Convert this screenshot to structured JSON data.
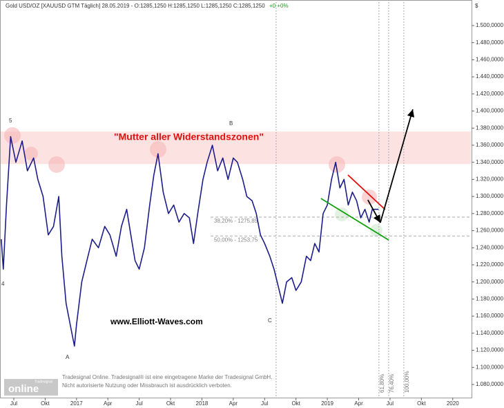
{
  "chart_data": {
    "type": "line",
    "title": "Gold USD/OZ [XAUUSD GTM  Täglich] 28.05.2019 - O:1285,1250 H:1285,1250 L:1285,1250 C:1285,1250",
    "change": "+0 +0%",
    "y_unit": "$",
    "color": "#1c1c8a",
    "x": [
      4.8,
      5.0,
      5.3,
      5.7,
      6.2,
      6.8,
      7.3,
      7.9,
      8.3,
      8.8,
      9.3,
      9.8,
      10.3,
      10.6,
      11.0,
      11.4,
      11.8,
      12.0,
      12.5,
      13.0,
      13.5,
      14.1,
      14.7,
      15.2,
      15.8,
      16.3,
      16.8,
      17.2,
      17.6,
      18.0,
      18.5,
      19.0,
      19.4,
      19.8,
      20.3,
      20.8,
      21.3,
      21.8,
      22.3,
      22.8,
      23.2,
      23.6,
      24.1,
      24.5,
      25.0,
      25.5,
      26.0,
      26.5,
      27.0,
      27.4,
      27.9,
      28.3,
      28.8,
      29.2,
      29.6,
      30.0,
      30.5,
      30.9,
      31.3,
      31.7,
      32.1,
      32.6,
      33.0,
      33.5,
      34.0,
      34.4,
      34.8,
      35.2,
      35.6,
      36.0,
      36.4,
      36.8,
      37.2,
      37.6,
      38.0,
      38.4,
      38.8,
      39.2,
      39.6,
      40.0,
      40.3,
      40.9
    ],
    "values": [
      1250,
      1215,
      1290,
      1370,
      1340,
      1365,
      1330,
      1345,
      1320,
      1300,
      1255,
      1265,
      1300,
      1230,
      1175,
      1150,
      1125,
      1150,
      1200,
      1225,
      1250,
      1240,
      1265,
      1255,
      1230,
      1265,
      1285,
      1255,
      1225,
      1215,
      1240,
      1290,
      1325,
      1350,
      1305,
      1280,
      1290,
      1270,
      1280,
      1275,
      1245,
      1280,
      1320,
      1340,
      1360,
      1330,
      1345,
      1320,
      1345,
      1340,
      1320,
      1300,
      1295,
      1280,
      1255,
      1245,
      1230,
      1215,
      1195,
      1175,
      1200,
      1205,
      1190,
      1200,
      1230,
      1225,
      1245,
      1235,
      1280,
      1290,
      1320,
      1340,
      1310,
      1320,
      1290,
      1305,
      1295,
      1275,
      1285,
      1270,
      1285,
      1285
    ],
    "xlim": [
      4.68,
      49.8
    ],
    "xticks": [
      {
        "value": 6,
        "label": "Jul"
      },
      {
        "value": 9,
        "label": "Okt"
      },
      {
        "value": 12,
        "label": "2017"
      },
      {
        "value": 15,
        "label": "Apr"
      },
      {
        "value": 18,
        "label": "Jul"
      },
      {
        "value": 21,
        "label": "Okt"
      },
      {
        "value": 24,
        "label": "2018"
      },
      {
        "value": 27,
        "label": "Apr"
      },
      {
        "value": 30,
        "label": "Jul"
      },
      {
        "value": 33,
        "label": "Okt"
      },
      {
        "value": 36,
        "label": "2019"
      },
      {
        "value": 39,
        "label": "Apr"
      },
      {
        "value": 42,
        "label": "Jul"
      },
      {
        "value": 45,
        "label": "Okt"
      },
      {
        "value": 48,
        "label": "2020"
      }
    ],
    "ylim": [
      1064.6,
      1527.5
    ],
    "yticks": [
      {
        "value": 1080,
        "label": "1.080,0000"
      },
      {
        "value": 1100,
        "label": "1.100,0000"
      },
      {
        "value": 1120,
        "label": "1.120,0000"
      },
      {
        "value": 1140,
        "label": "1.140,0000"
      },
      {
        "value": 1160,
        "label": "1.160,0000"
      },
      {
        "value": 1180,
        "label": "1.180,0000"
      },
      {
        "value": 1200,
        "label": "1.200,0000"
      },
      {
        "value": 1220,
        "label": "1.220,0000"
      },
      {
        "value": 1240,
        "label": "1.240,0000"
      },
      {
        "value": 1260,
        "label": "1.260,0000"
      },
      {
        "value": 1280,
        "label": "1.280,0000"
      },
      {
        "value": 1300,
        "label": "1.300,0000"
      },
      {
        "value": 1320,
        "label": "1.320,0000"
      },
      {
        "value": 1340,
        "label": "1.340,0000"
      },
      {
        "value": 1360,
        "label": "1.360,0000"
      },
      {
        "value": 1380,
        "label": "1.380,0000"
      },
      {
        "value": 1400,
        "label": "1.400,0000"
      },
      {
        "value": 1420,
        "label": "1.420,0000"
      },
      {
        "value": 1440,
        "label": "1.440,0000"
      },
      {
        "value": 1460,
        "label": "1.460,0000"
      },
      {
        "value": 1480,
        "label": "1.480,0000"
      },
      {
        "value": 1500,
        "label": "1.500,0000"
      }
    ],
    "zone": [
      1338,
      1376
    ],
    "zone_label": "\"Mutter aller Widerstandszonen\"",
    "fib_levels": [
      {
        "value": 1275.85,
        "label": "38,20% - 1275,85"
      },
      {
        "value": 1253.75,
        "label": "50,00% - 1253,75"
      }
    ],
    "time_lines": [
      {
        "value": 31.1
      },
      {
        "value": 40.94,
        "label": "61,80%"
      },
      {
        "value": 41.87,
        "label": "76,40%"
      },
      {
        "value": 43.32,
        "label": "100,00%"
      }
    ],
    "trendlines": [
      {
        "color": "#e01010",
        "x": [
          37.97,
          41.53
        ],
        "y": [
          1325.2,
          1284.7
        ]
      },
      {
        "color": "#10a010",
        "x": [
          35.39,
          41.87
        ],
        "y": [
          1297.7,
          1249
        ]
      },
      {
        "color": "#000000",
        "x": [
          41.07,
          44.18
        ],
        "y": [
          1269.3,
          1402
        ],
        "arrow": true
      },
      {
        "color": "#000000",
        "x": [
          39.88,
          41.07
        ],
        "y": [
          1296,
          1269.3
        ],
        "arrow": true
      }
    ],
    "wave_labels": [
      "5",
      "A",
      "B",
      "C",
      "4"
    ],
    "watermark": "www.Elliott-Waves.com",
    "logo": "online",
    "logo_small": "Tradesignal",
    "notice": [
      "Tradesignal Online. Tradesignal® ist eine eingetragene Marke der Tradesignal GmbH.",
      "Nicht autorisierte Nutzung oder Missbrauch ist ausdrücklich verboten."
    ]
  }
}
